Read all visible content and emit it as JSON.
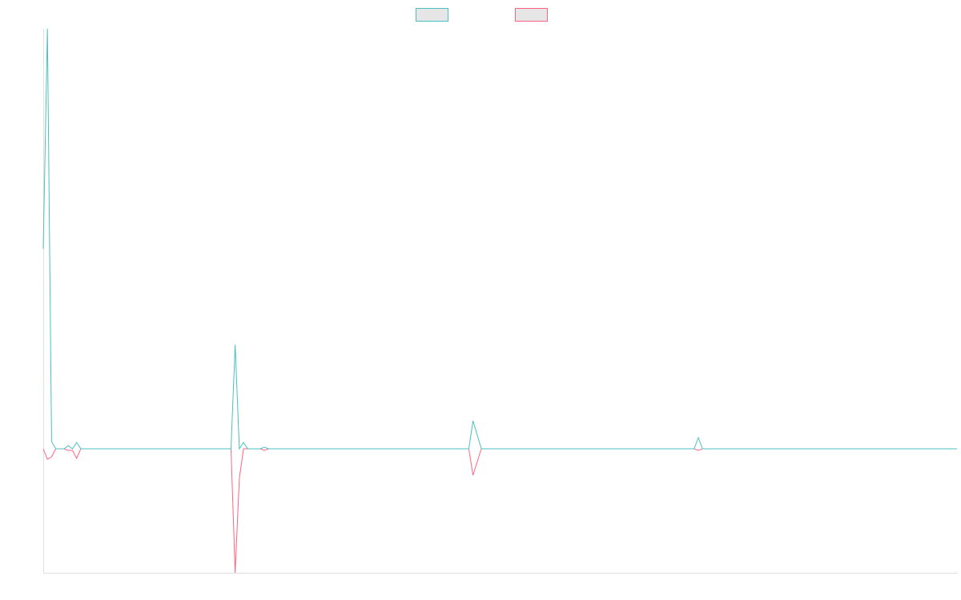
{
  "chart_data": {
    "type": "line",
    "legend": "top",
    "ylim": [
      -31,
      105
    ],
    "categories": [
      null,
      null,
      null,
      null,
      null,
      null,
      null,
      null,
      null,
      null,
      null,
      null,
      null,
      null,
      null,
      null,
      null,
      null,
      null,
      null,
      null,
      null,
      null,
      null,
      null,
      null,
      null,
      null,
      null,
      null,
      null,
      null,
      null,
      null,
      null,
      null,
      null,
      null,
      null,
      null,
      null,
      null,
      null,
      null,
      null,
      null,
      null,
      null,
      null,
      null,
      null,
      null,
      null,
      null,
      null,
      null,
      null,
      null,
      null,
      null,
      null,
      null,
      null,
      null,
      null,
      null,
      null,
      null,
      null,
      null,
      null,
      null,
      null,
      null,
      null,
      null,
      null,
      null,
      null,
      null,
      null,
      null,
      null,
      null,
      null,
      null,
      null,
      null,
      null,
      null,
      null,
      null,
      null,
      null,
      null,
      null,
      null,
      null,
      null,
      null,
      null,
      null,
      null,
      null,
      null,
      null,
      null,
      null,
      null,
      null,
      null,
      null,
      null,
      null,
      null,
      null,
      null,
      null,
      null,
      null,
      null,
      null,
      null,
      null,
      null,
      null,
      null,
      null,
      null,
      null,
      null,
      null,
      null,
      null,
      null,
      null,
      null,
      null,
      null,
      null,
      null,
      null,
      null,
      null,
      null,
      null,
      null,
      null,
      null,
      null,
      null,
      null,
      null,
      null,
      null,
      null,
      null,
      null,
      null,
      null,
      null,
      null,
      null,
      null,
      null,
      null,
      null,
      null,
      null,
      null,
      null,
      null,
      null,
      null,
      null,
      null,
      null,
      null,
      null,
      null,
      null,
      null,
      null,
      null,
      null,
      null,
      null,
      null,
      null,
      null,
      null,
      null,
      null,
      null,
      null,
      null,
      null,
      null,
      null,
      null,
      null,
      null,
      null,
      null,
      null,
      null,
      null,
      null,
      null,
      null,
      null,
      null,
      null,
      null,
      null,
      null,
      null,
      null,
      null,
      null
    ],
    "series": [
      {
        "color": "#4bc0c0",
        "values": [
          50,
          105,
          1.8,
          0,
          0,
          0,
          0.8,
          0,
          1.6,
          0,
          0,
          0,
          0,
          0,
          0,
          0,
          0,
          0,
          0,
          0,
          0,
          0,
          0,
          0,
          0,
          0,
          0,
          0,
          0,
          0,
          0,
          0,
          0,
          0,
          0,
          0,
          0,
          0,
          0,
          0,
          0,
          0,
          0,
          0,
          0,
          0,
          26,
          0,
          1.6,
          0,
          0,
          0,
          0,
          0.4,
          0,
          0,
          0,
          0,
          0,
          0,
          0,
          0,
          0,
          0,
          0,
          0,
          0,
          0,
          0,
          0,
          0,
          0,
          0,
          0,
          0,
          0,
          0,
          0,
          0,
          0,
          0,
          0,
          0,
          0,
          0,
          0,
          0,
          0,
          0,
          0,
          0,
          0,
          0,
          0,
          0,
          0,
          0,
          0,
          0,
          0,
          0,
          0,
          0,
          7,
          3.5,
          0,
          0,
          0,
          0,
          0,
          0,
          0,
          0,
          0,
          0,
          0,
          0,
          0,
          0,
          0,
          0,
          0,
          0,
          0,
          0,
          0,
          0,
          0,
          0,
          0,
          0,
          0,
          0,
          0,
          0,
          0,
          0,
          0,
          0,
          0,
          0,
          0,
          0,
          0,
          0,
          0,
          0,
          0,
          0,
          0,
          0,
          0,
          0,
          0,
          0,
          0,
          0,
          2.8,
          0,
          0,
          0,
          0,
          0,
          0,
          0,
          0,
          0,
          0,
          0,
          0,
          0,
          0,
          0,
          0,
          0,
          0,
          0,
          0,
          0,
          0,
          0,
          0,
          0,
          0,
          0,
          0,
          0,
          0,
          0,
          0,
          0,
          0,
          0,
          0,
          0,
          0,
          0,
          0,
          0,
          0,
          0,
          0,
          0,
          0,
          0,
          0,
          0,
          0,
          0,
          0,
          0,
          0,
          0,
          0,
          0,
          0,
          0,
          0,
          0,
          0
        ]
      },
      {
        "color": "#ff6384",
        "values": [
          0,
          -2.6,
          -2,
          0,
          0,
          0,
          -0.4,
          -0.4,
          -2.4,
          0,
          0,
          0,
          0,
          0,
          0,
          0,
          0,
          0,
          0,
          0,
          0,
          0,
          0,
          0,
          0,
          0,
          0,
          0,
          0,
          0,
          0,
          0,
          0,
          0,
          0,
          0,
          0,
          0,
          0,
          0,
          0,
          0,
          0,
          0,
          0,
          0,
          -31,
          -7.4,
          0,
          0,
          0,
          0,
          0,
          -0.4,
          0,
          0,
          0,
          0,
          0,
          0,
          0,
          0,
          0,
          0,
          0,
          0,
          0,
          0,
          0,
          0,
          0,
          0,
          0,
          0,
          0,
          0,
          0,
          0,
          0,
          0,
          0,
          0,
          0,
          0,
          0,
          0,
          0,
          0,
          0,
          0,
          0,
          0,
          0,
          0,
          0,
          0,
          0,
          0,
          0,
          0,
          0,
          0,
          0,
          -6.6,
          -3.3,
          0,
          0,
          0,
          0,
          0,
          0,
          0,
          0,
          0,
          0,
          0,
          0,
          0,
          0,
          0,
          0,
          0,
          0,
          0,
          0,
          0,
          0,
          0,
          0,
          0,
          0,
          0,
          0,
          0,
          0,
          0,
          0,
          0,
          0,
          0,
          0,
          0,
          0,
          0,
          0,
          0,
          0,
          0,
          0,
          0,
          0,
          0,
          0,
          0,
          0,
          0,
          0,
          -0.4,
          0,
          0,
          0,
          0,
          0,
          0,
          0,
          0,
          0,
          0,
          0,
          0,
          0,
          0,
          0,
          0,
          0,
          0,
          0,
          0,
          0,
          0,
          0,
          0,
          0,
          0,
          0,
          0,
          0,
          0,
          0,
          0,
          0,
          0,
          0,
          0,
          0,
          0,
          0,
          0,
          0,
          0,
          0,
          0,
          0,
          0,
          0,
          0,
          0,
          0,
          0,
          0,
          0,
          0,
          0,
          0,
          0,
          0,
          0,
          0,
          0,
          0
        ]
      }
    ]
  }
}
